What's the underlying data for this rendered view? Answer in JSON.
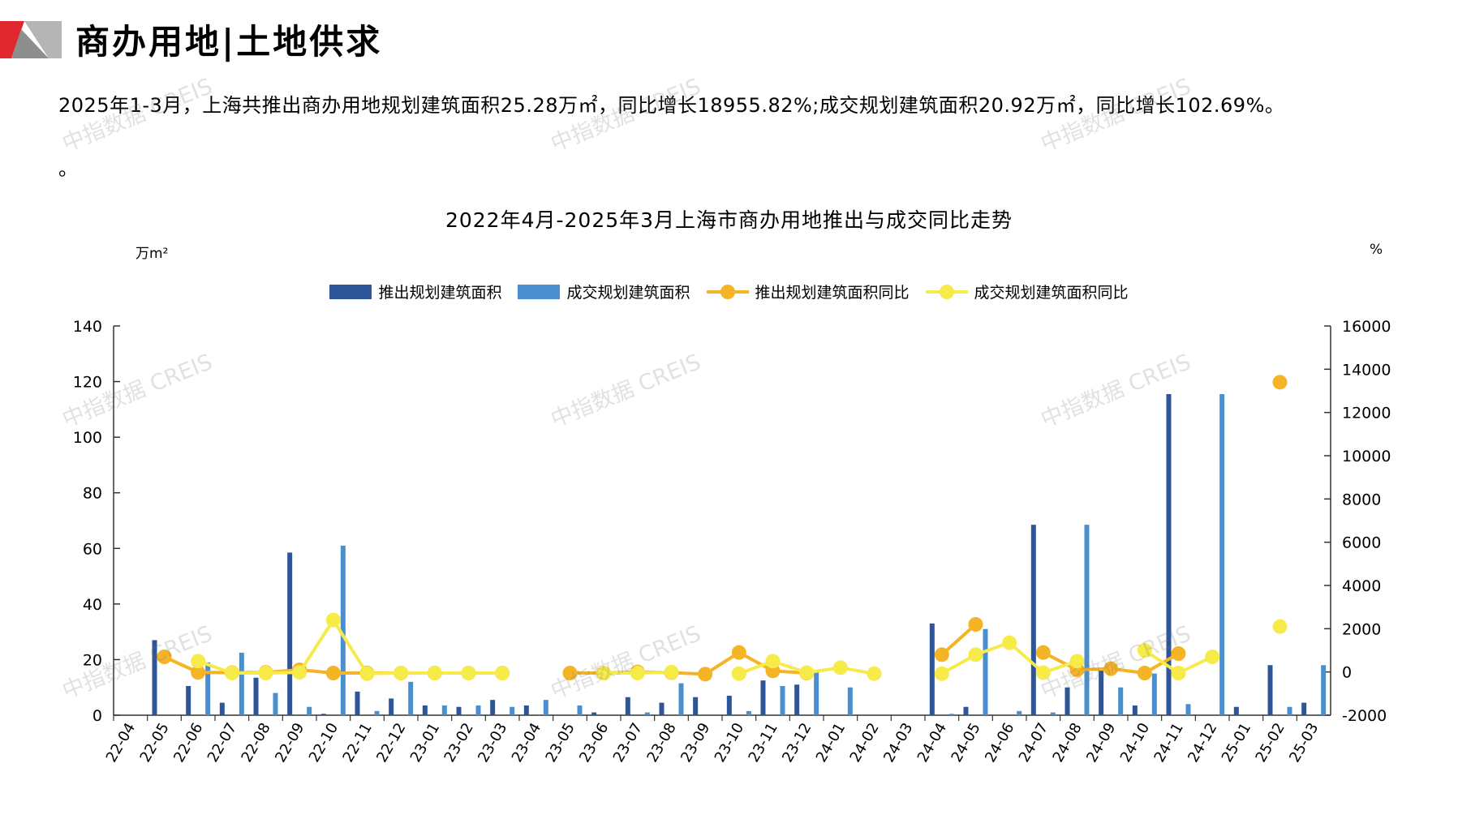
{
  "header": {
    "title": "商办用地|土地供求",
    "summary": "2025年1-3月，上海共推出商办用地规划建筑面积25.28万㎡，同比增长18955.82%;成交规划建筑面积20.92万㎡，同比增长102.69%。",
    "summary_tail": "。"
  },
  "watermark_text": "中指数据 CREIS",
  "colors": {
    "supply_bar": "#2E5597",
    "deal_bar": "#4A8FD0",
    "supply_yoy": "#F5B326",
    "deal_yoy": "#F7EB4A",
    "logo_red": "#E0282E",
    "logo_gray": "#B5B5B5"
  },
  "chart_data": {
    "type": "bar",
    "title": "2022年4月-2025年3月上海市商办用地推出与成交同比走势",
    "ylabel_left": "万m²",
    "ylabel_right": "%",
    "ylim_left": [
      0,
      140
    ],
    "yticks_left": [
      0,
      20,
      40,
      60,
      80,
      100,
      120,
      140
    ],
    "ylim_right": [
      -2000,
      16000
    ],
    "yticks_right": [
      -2000,
      0,
      2000,
      4000,
      6000,
      8000,
      10000,
      12000,
      14000,
      16000
    ],
    "legend_position": "top",
    "categories": [
      "22-04",
      "22-05",
      "22-06",
      "22-07",
      "22-08",
      "22-09",
      "22-10",
      "22-11",
      "22-12",
      "23-01",
      "23-02",
      "23-03",
      "23-04",
      "23-05",
      "23-06",
      "23-07",
      "23-08",
      "23-09",
      "23-10",
      "23-11",
      "23-12",
      "24-01",
      "24-02",
      "24-03",
      "24-04",
      "24-05",
      "24-06",
      "24-07",
      "24-08",
      "24-09",
      "24-10",
      "24-11",
      "24-12",
      "25-01",
      "25-02",
      "25-03"
    ],
    "series": [
      {
        "name": "推出规划建筑面积",
        "kind": "bar",
        "axis": "left",
        "values": [
          0,
          27,
          10.5,
          4.5,
          13.5,
          58.5,
          0.5,
          8.5,
          6,
          3.5,
          3,
          5.5,
          3.5,
          0,
          1,
          6.5,
          4.5,
          6.5,
          7,
          12.5,
          11,
          0,
          0,
          0,
          33,
          3,
          0,
          68.5,
          10,
          16,
          3.5,
          115.5,
          0,
          3,
          18,
          4.5
        ]
      },
      {
        "name": "成交规划建筑面积",
        "kind": "bar",
        "axis": "left",
        "values": [
          0,
          0,
          19,
          22.5,
          8,
          3,
          61,
          1.5,
          12,
          3.5,
          3.5,
          3,
          5.5,
          3.5,
          0,
          1,
          11.5,
          0,
          1.5,
          10.5,
          16,
          10,
          0,
          0,
          0.5,
          31,
          1.5,
          1,
          68.5,
          10,
          15,
          4,
          115.5,
          0,
          3,
          18
        ]
      },
      {
        "name": "推出规划建筑面积同比",
        "kind": "line",
        "axis": "right",
        "values": [
          null,
          700,
          -20,
          -30,
          -20,
          100,
          -50,
          -50,
          -50,
          -50,
          -50,
          -50,
          null,
          -50,
          -50,
          0,
          -30,
          -100,
          900,
          50,
          -50,
          null,
          null,
          null,
          800,
          2200,
          null,
          900,
          100,
          150,
          -50,
          850,
          null,
          null,
          13400,
          null
        ]
      },
      {
        "name": "成交规划建筑面积同比",
        "kind": "line",
        "axis": "right",
        "values": [
          null,
          null,
          500,
          -50,
          -50,
          -20,
          2400,
          -80,
          -50,
          -50,
          -50,
          -50,
          null,
          null,
          -50,
          -50,
          -10,
          null,
          -80,
          500,
          -30,
          200,
          -80,
          null,
          -80,
          800,
          1350,
          -30,
          500,
          null,
          1000,
          -50,
          700,
          null,
          2100,
          null
        ]
      }
    ]
  }
}
